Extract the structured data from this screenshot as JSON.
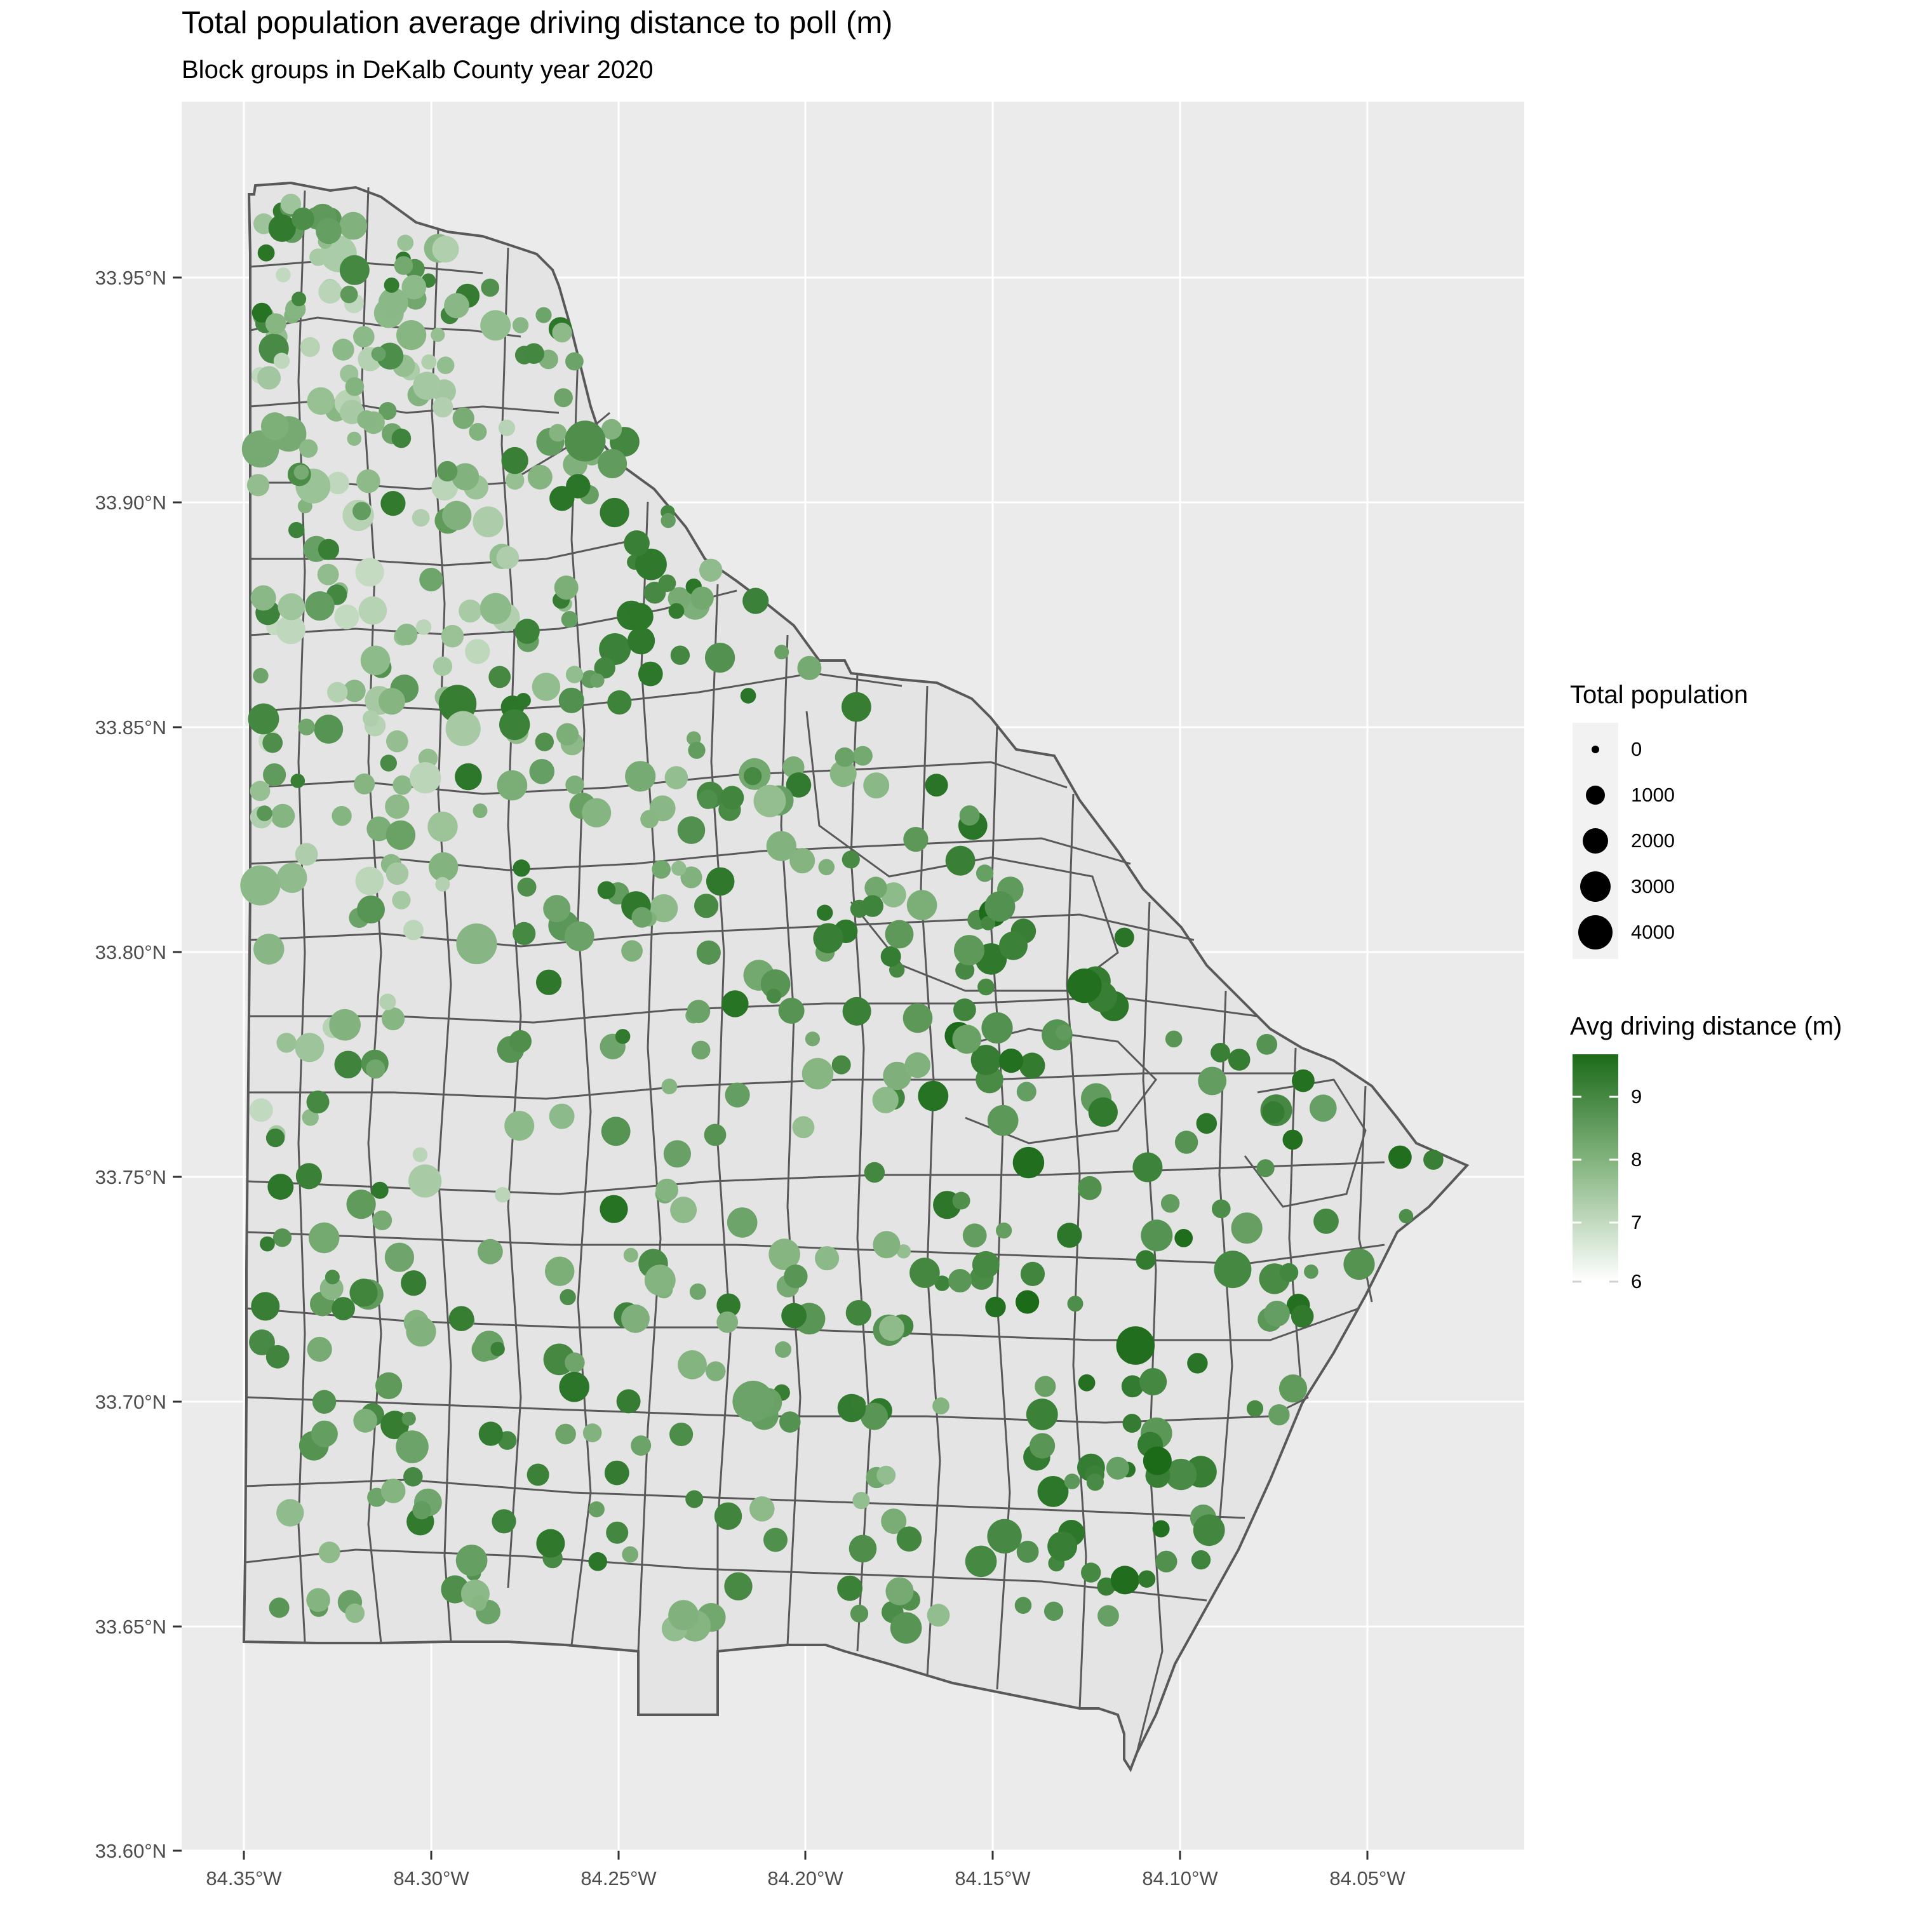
{
  "title": "Total population average driving distance to poll (m)",
  "subtitle": "Block groups in DeKalb County year 2020",
  "x_ticks": [
    "84.35°W",
    "84.30°W",
    "84.25°W",
    "84.20°W",
    "84.15°W",
    "84.10°W",
    "84.05°W"
  ],
  "y_ticks": [
    "33.95°N",
    "33.90°N",
    "33.85°N",
    "33.80°N",
    "33.75°N",
    "33.70°N",
    "33.65°N",
    "33.60°N"
  ],
  "legend_size": {
    "title": "Total population",
    "labels": [
      "0",
      "1000",
      "2000",
      "3000",
      "4000"
    ]
  },
  "legend_color": {
    "title": "Avg driving distance (m)",
    "labels": [
      "9",
      "8",
      "7",
      "6"
    ],
    "low_color": "#ffffff",
    "high_color": "#1c6b19"
  },
  "colors": {
    "panel_bg": "#ebebeb",
    "grid": "#ffffff",
    "boundary": "#595959",
    "county_fill": "#e4e4e4"
  }
}
